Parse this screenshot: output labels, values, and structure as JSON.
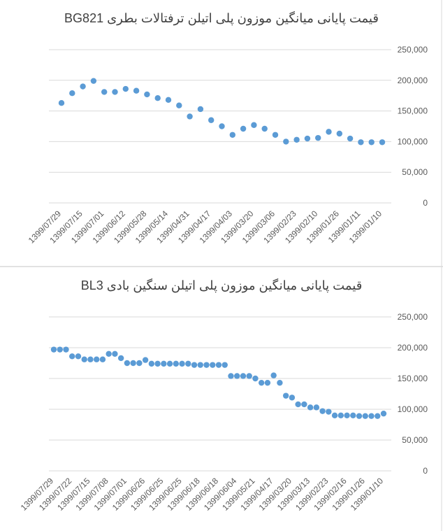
{
  "chart_data": [
    {
      "type": "line",
      "title": "قیمت پایانی میانگین موزون پلی اتیلن ترفتالات بطری BG821",
      "categories": [
        "1399/07/29",
        null,
        "1399/07/15",
        null,
        "1399/07/01",
        null,
        "1399/06/12",
        null,
        "1399/05/28",
        null,
        "1399/05/14",
        null,
        "1399/04/31",
        null,
        "1399/04/17",
        null,
        "1399/04/03",
        null,
        "1399/03/20",
        null,
        "1399/03/06",
        null,
        "1399/02/23",
        null,
        "1399/02/10",
        null,
        "1399/01/26",
        null,
        "1399/01/11",
        null,
        "1399/01/10"
      ],
      "series": [
        {
          "name": null,
          "color": "#5b9bd5",
          "values": [
            163000,
            179000,
            190000,
            199000,
            181000,
            181000,
            186000,
            183000,
            177000,
            171000,
            168000,
            159000,
            141000,
            153000,
            135000,
            125000,
            111000,
            121000,
            127000,
            121000,
            111000,
            100000,
            103000,
            105000,
            106000,
            116000,
            113000,
            105000,
            99000,
            99000,
            99000
          ]
        }
      ],
      "ylim": [
        0,
        250000
      ],
      "yticks": [
        0,
        {
          "value": 50000,
          "label": "50,000"
        },
        {
          "value": 100000,
          "label": "100,000"
        },
        {
          "value": 150000,
          "label": "150,000"
        },
        {
          "value": 200000,
          "label": "200,000"
        },
        {
          "value": 250000,
          "label": "250,000"
        }
      ],
      "grid": true
    },
    {
      "type": "line",
      "title": "قیمت پایانی میانگین موزون پلی اتیلن سنگین بادی BL3",
      "categories": [
        "1399/07/29",
        null,
        null,
        "1399/07/22",
        null,
        null,
        "1399/07/15",
        null,
        null,
        "1399/07/08",
        null,
        null,
        "1399/07/01",
        null,
        null,
        "1399/06/26",
        null,
        null,
        "1399/06/25",
        null,
        null,
        "1399/06/25",
        null,
        null,
        "1399/06/18",
        null,
        null,
        "1399/06/18",
        null,
        null,
        "1399/06/04",
        null,
        null,
        "1399/05/21",
        null,
        null,
        "1399/04/17",
        null,
        null,
        "1399/03/20",
        null,
        null,
        "1399/03/13",
        null,
        null,
        "1399/02/23",
        null,
        null,
        "1399/02/16",
        null,
        null,
        "1399/01/26",
        null,
        null,
        "1399/01/10"
      ],
      "series": [
        {
          "name": null,
          "color": "#5b9bd5",
          "values": [
            197000,
            197000,
            197000,
            186000,
            186000,
            181000,
            181000,
            181000,
            181000,
            190000,
            190000,
            183000,
            175000,
            175000,
            175000,
            180000,
            174000,
            174000,
            174000,
            174000,
            174000,
            174000,
            174000,
            172000,
            172000,
            172000,
            172000,
            172000,
            172000,
            154000,
            154000,
            154000,
            154000,
            150000,
            143000,
            143000,
            155000,
            143000,
            122000,
            119000,
            108000,
            108000,
            103000,
            103000,
            97000,
            96000,
            90000,
            90000,
            90000,
            90000,
            89000,
            89000,
            89000,
            89000,
            93000
          ]
        }
      ],
      "ylim": [
        0,
        250000
      ],
      "yticks": [
        0,
        {
          "value": 50000,
          "label": "50,000"
        },
        {
          "value": 100000,
          "label": "100,000"
        },
        {
          "value": 150000,
          "label": "150,000"
        },
        {
          "value": 200000,
          "label": "200,000"
        },
        {
          "value": 250000,
          "label": "250,000"
        }
      ],
      "grid": true
    }
  ]
}
